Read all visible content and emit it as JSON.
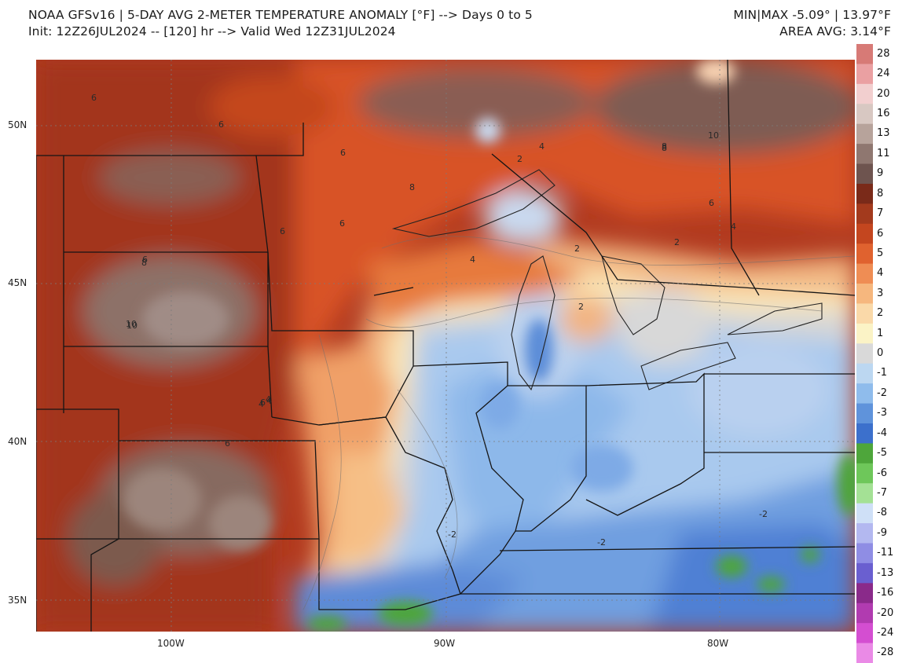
{
  "header": {
    "title": "NOAA GFSv16 |  5-DAY AVG 2-METER TEMPERATURE ANOMALY [°F] --> Days 0 to 5",
    "init": "Init: 12Z26JUL2024 -- [120] hr --> Valid Wed 12Z31JUL2024",
    "minmax": "MIN|MAX -5.09° | 13.97°F",
    "area_avg": "AREA AVG: 3.14°F"
  },
  "map": {
    "lat_labels": [
      "50N",
      "45N",
      "40N",
      "35N"
    ],
    "lon_labels": [
      "100W",
      "90W",
      "80W"
    ],
    "contour_labels": [
      "6",
      "6",
      "6",
      "6",
      "8",
      "6",
      "6",
      "4",
      "8",
      "10",
      "8",
      "6",
      "4",
      "2",
      "4",
      "2",
      "2",
      "2",
      "10",
      "4",
      "6",
      "6",
      "4",
      "-2",
      "-2",
      "-2",
      "10",
      "8",
      "4"
    ]
  },
  "colorbar": {
    "labels": [
      "28",
      "24",
      "20",
      "16",
      "13",
      "11",
      "9",
      "8",
      "7",
      "6",
      "5",
      "4",
      "3",
      "2",
      "1",
      "0",
      "-1",
      "-2",
      "-3",
      "-4",
      "-5",
      "-6",
      "-7",
      "-8",
      "-9",
      "-11",
      "-13",
      "-16",
      "-20",
      "-24",
      "-28"
    ],
    "colors": [
      "#d77a76",
      "#eaa0a2",
      "#f2cfcf",
      "#d8c8c2",
      "#b7a39b",
      "#8f7770",
      "#6e544f",
      "#7a2a19",
      "#a33a1d",
      "#c4461f",
      "#e0622f",
      "#ef8d54",
      "#f6b77e",
      "#fad9a9",
      "#fbf3c6",
      "#d9d9d9",
      "#bcd7f1",
      "#8fbcec",
      "#5f93db",
      "#3c70cc",
      "#4ea63b",
      "#6ec75a",
      "#a4e195",
      "#cfe0f7",
      "#b3b8f0",
      "#8f8de4",
      "#6a5fd0",
      "#8a2a8a",
      "#b13bb0",
      "#d44ed1",
      "#ea8ae6"
    ]
  }
}
